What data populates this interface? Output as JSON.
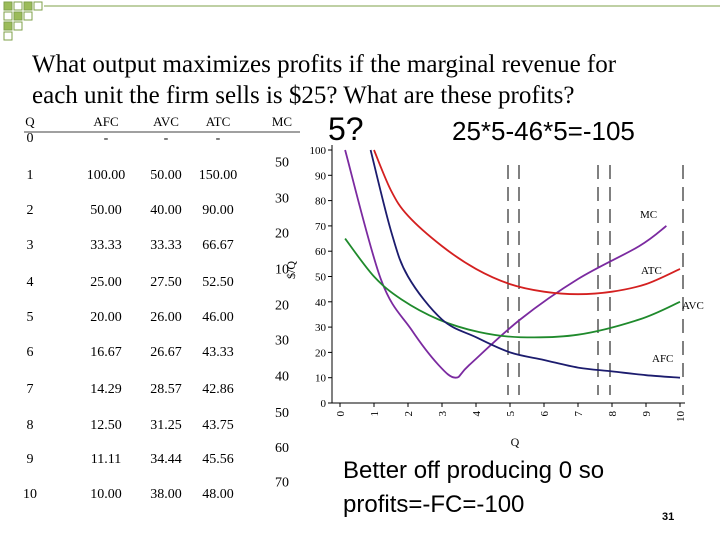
{
  "slide": {
    "title_lines": [
      "What output maximizes profits if the marginal revenue for",
      "each unit the firm sells is $25? What are these profits?"
    ],
    "answer_q": "5?",
    "answer_profit": "25*5-46*5=-105",
    "note_lines": [
      "Better off producing 0 so",
      "profits=-FC=-100"
    ],
    "page_number": "31"
  },
  "table": {
    "header": [
      "Q",
      "AFC",
      "AVC",
      "ATC",
      "MC"
    ],
    "rows": [
      [
        "0",
        "-",
        "-",
        "-"
      ],
      [
        "1",
        "100.00",
        "50.00",
        "150.00"
      ],
      [
        "2",
        "50.00",
        "40.00",
        "90.00"
      ],
      [
        "3",
        "33.33",
        "33.33",
        "66.67"
      ],
      [
        "4",
        "25.00",
        "27.50",
        "52.50"
      ],
      [
        "5",
        "20.00",
        "26.00",
        "46.00"
      ],
      [
        "6",
        "16.67",
        "26.67",
        "43.33"
      ],
      [
        "7",
        "14.29",
        "28.57",
        "42.86"
      ],
      [
        "8",
        "12.50",
        "31.25",
        "43.75"
      ],
      [
        "9",
        "11.11",
        "34.44",
        "45.56"
      ],
      [
        "10",
        "10.00",
        "38.00",
        "48.00"
      ]
    ],
    "mc": [
      "50",
      "30",
      "20",
      "10",
      "20",
      "30",
      "40",
      "50",
      "60",
      "70"
    ]
  },
  "chart": {
    "type": "line",
    "y_label": "$/Q",
    "x_label": "Q",
    "xlim": [
      0,
      10
    ],
    "ylim": [
      0,
      100
    ],
    "xticks": [
      0,
      1,
      2,
      3,
      4,
      5,
      6,
      7,
      8,
      9,
      10
    ],
    "yticks": [
      0,
      10,
      20,
      30,
      40,
      50,
      60,
      70,
      80,
      90,
      100
    ],
    "series": [
      {
        "name": "MC",
        "color": "#7b2aa0",
        "x": [
          0.15,
          1.2,
          2.1,
          2.9,
          3.4,
          3.8,
          5.3,
          7,
          8.8,
          9.6
        ],
        "values": [
          100,
          49,
          29,
          15,
          10,
          15,
          33,
          49,
          62,
          70
        ]
      },
      {
        "name": "ATC",
        "color": "#d42020",
        "x": [
          1,
          1.5,
          2,
          3,
          4,
          5,
          6,
          7,
          8,
          9,
          10
        ],
        "values": [
          100,
          84,
          74,
          62,
          53,
          47,
          44,
          43,
          44,
          47,
          53
        ]
      },
      {
        "name": "AVC",
        "color": "#1f8a2c",
        "x": [
          0.15,
          1,
          1.8,
          2.9,
          4.1,
          5.3,
          7,
          8.8,
          10
        ],
        "values": [
          65,
          50,
          41,
          33,
          28,
          26,
          27,
          33,
          40
        ]
      },
      {
        "name": "AFC",
        "color": "#1c1c6e",
        "x": [
          0.9,
          1.5,
          2,
          3,
          4,
          5,
          6,
          7,
          8,
          9,
          10
        ],
        "values": [
          100,
          68,
          50,
          33,
          26,
          20,
          17,
          14,
          12.5,
          11,
          10
        ]
      }
    ]
  }
}
